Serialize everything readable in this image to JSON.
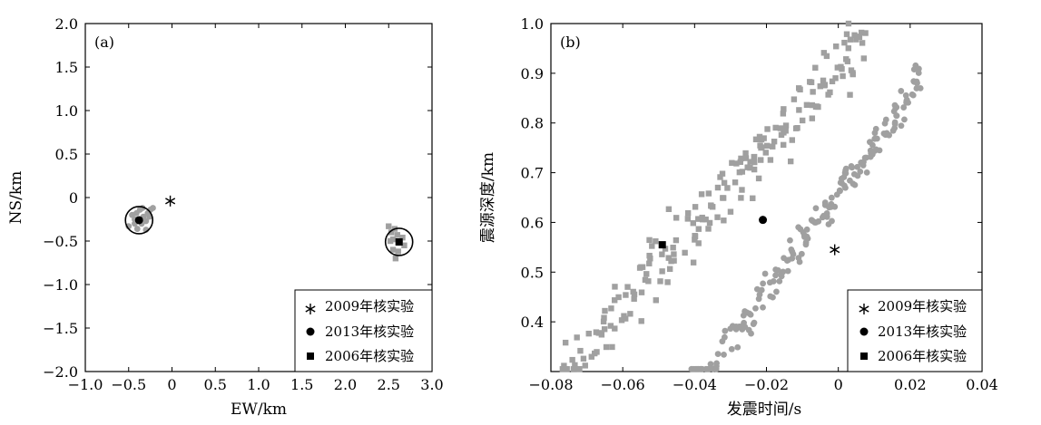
{
  "chart_data": [
    {
      "type": "scatter",
      "panel_label": "(a)",
      "xlabel": "EW/km",
      "ylabel": "NS/km",
      "xlim": [
        -1.0,
        3.0
      ],
      "ylim": [
        -2.0,
        2.0
      ],
      "xticks": [
        "−1.0",
        "−0.5",
        "0",
        "0.5",
        "1.0",
        "1.5",
        "2.0",
        "2.5",
        "3.0"
      ],
      "yticks": [
        "2.0",
        "1.5",
        "1.0",
        "0.5",
        "0",
        "−0.5",
        "−1.0",
        "−1.5",
        "−2.0"
      ],
      "xtick_values": [
        -1.0,
        -0.5,
        0,
        0.5,
        1.0,
        1.5,
        2.0,
        2.5,
        3.0
      ],
      "ytick_values": [
        2.0,
        1.5,
        1.0,
        0.5,
        0,
        -0.5,
        -1.0,
        -1.5,
        -2.0
      ],
      "legend": [
        "2009年核实验",
        "2013年核实验",
        "2006年核实验"
      ],
      "legend_position": "bottom-right",
      "colors": {
        "grey": "#a0a0a0",
        "black": "#000000"
      },
      "series": [
        {
          "name": "2009年核实验",
          "marker": "asterisk",
          "points": [
            [
              -0.02,
              -0.04
            ]
          ]
        },
        {
          "name": "2013年核实验",
          "marker": "circle",
          "ring": true,
          "points": [
            [
              -0.38,
              -0.26
            ]
          ]
        },
        {
          "name": "2006年核实验",
          "marker": "square",
          "ring": true,
          "points": [
            [
              2.62,
              -0.51
            ]
          ]
        },
        {
          "marker": "grey-circle",
          "points": [
            [
              -0.5,
              -0.33
            ],
            [
              -0.46,
              -0.2
            ],
            [
              -0.43,
              -0.3
            ],
            [
              -0.41,
              -0.18
            ],
            [
              -0.4,
              -0.36
            ],
            [
              -0.37,
              -0.14
            ],
            [
              -0.35,
              -0.3
            ],
            [
              -0.33,
              -0.22
            ],
            [
              -0.3,
              -0.27
            ],
            [
              -0.28,
              -0.18
            ],
            [
              -0.25,
              -0.14
            ],
            [
              -0.22,
              -0.12
            ],
            [
              -0.3,
              -0.37
            ],
            [
              -0.43,
              -0.25
            ],
            [
              -0.34,
              -0.12
            ],
            [
              -0.26,
              -0.22
            ]
          ]
        },
        {
          "marker": "grey-square",
          "points": [
            [
              2.5,
              -0.33
            ],
            [
              2.53,
              -0.4
            ],
            [
              2.55,
              -0.48
            ],
            [
              2.57,
              -0.36
            ],
            [
              2.6,
              -0.43
            ],
            [
              2.63,
              -0.52
            ],
            [
              2.66,
              -0.46
            ],
            [
              2.55,
              -0.6
            ],
            [
              2.58,
              -0.7
            ],
            [
              2.61,
              -0.62
            ],
            [
              2.68,
              -0.55
            ],
            [
              2.52,
              -0.5
            ]
          ]
        }
      ]
    },
    {
      "type": "scatter",
      "panel_label": "(b)",
      "xlabel": "发震时间/s",
      "ylabel": "震源深度/km",
      "xlim": [
        -0.08,
        0.04
      ],
      "ylim": [
        0.3,
        1.0
      ],
      "xticks": [
        "−0.08",
        "−0.06",
        "−0.04",
        "−0.02",
        "0",
        "0.02",
        "0.04"
      ],
      "yticks": [
        "1.0",
        "0.9",
        "0.8",
        "0.7",
        "0.6",
        "0.5",
        "0.4"
      ],
      "xtick_values": [
        -0.08,
        -0.06,
        -0.04,
        -0.02,
        0,
        0.02,
        0.04
      ],
      "ytick_values": [
        1.0,
        0.9,
        0.8,
        0.7,
        0.6,
        0.5,
        0.4
      ],
      "legend": [
        "2009年核实验",
        "2013年核实验",
        "2006年核实验"
      ],
      "legend_position": "bottom-right",
      "series": [
        {
          "name": "2009年核实验",
          "marker": "asterisk",
          "points": [
            [
              -0.001,
              0.545
            ]
          ]
        },
        {
          "name": "2013年核实验",
          "marker": "circle",
          "points": [
            [
              -0.021,
              0.605
            ]
          ]
        },
        {
          "name": "2006年核实验",
          "marker": "square",
          "points": [
            [
              -0.049,
              0.555
            ]
          ]
        },
        {
          "marker": "grey-circle",
          "cluster": {
            "count": 190,
            "t_from": -0.041,
            "t_to": 0.023,
            "depth_intercept": 0.66,
            "depth_slope": 10.0,
            "spread": 0.035
          }
        },
        {
          "marker": "grey-square",
          "cluster": {
            "count": 200,
            "t_from": -0.077,
            "t_to": 0.008,
            "depth_intercept": 0.92,
            "depth_slope": 8.2,
            "spread": 0.07
          }
        }
      ]
    }
  ]
}
